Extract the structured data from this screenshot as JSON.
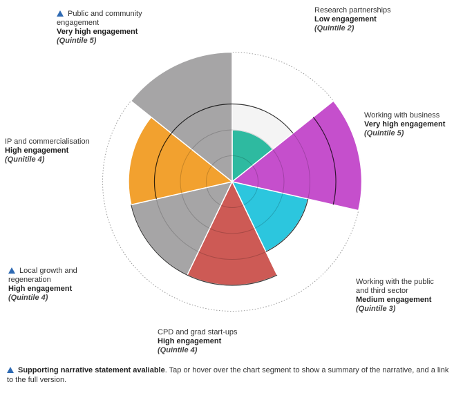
{
  "legend": {
    "marker_icon": "triangle-icon",
    "marker_color": "#2f6ab3",
    "bold_text": "Supporting narrative statement avaliable",
    "text": ". Tap or hover over the chart segment to show a summary of the narrative, and a link to the full version."
  },
  "chart_data": {
    "type": "polar-area",
    "max_quintile": 5,
    "segments": [
      {
        "name": "Research partnerships",
        "level": "Low engagement",
        "quintile_label": "(Quintile 2)",
        "quintile": 2,
        "narrative": false,
        "color": "#2ebaa0"
      },
      {
        "name": "Working with business",
        "level": "Very high engagement",
        "quintile_label": "(Quintile 5)",
        "quintile": 5,
        "narrative": false,
        "color": "#c54fcc"
      },
      {
        "name": "Working with the public and third sector",
        "level": "Medium engagement",
        "quintile_label": "(Quintile 3)",
        "quintile": 3,
        "narrative": false,
        "color": "#2cc6de"
      },
      {
        "name": "CPD and grad start-ups",
        "level": "High engagement",
        "quintile_label": "(Quintile 4)",
        "quintile": 4,
        "narrative": false,
        "color": "#cd5a55"
      },
      {
        "name": "Local growth and regeneration",
        "level": "High engagement",
        "quintile_label": "(Quintile 4)",
        "quintile": 4,
        "narrative": true,
        "color": "#a6a5a6"
      },
      {
        "name": "IP and commercialisation",
        "level": "High engagement",
        "quintile_label": "(Qunitile 4)",
        "quintile": 4,
        "narrative": false,
        "color": "#f2a12f"
      },
      {
        "name": "Public and community engagement",
        "level": "Very high engagement",
        "quintile_label": "(Quintile 5)",
        "quintile": 5,
        "narrative": true,
        "color": "#a6a5a6"
      }
    ],
    "benchmark": [
      3,
      4,
      3,
      4,
      4,
      3,
      3
    ]
  }
}
